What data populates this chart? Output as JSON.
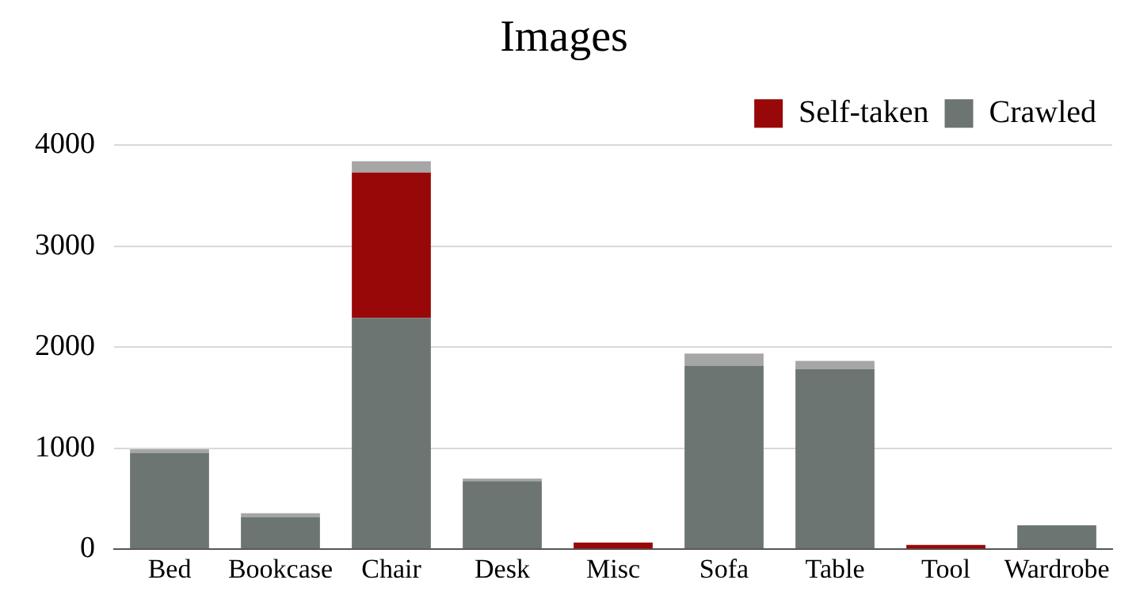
{
  "chart_data": {
    "type": "bar",
    "title": "Images",
    "stacked": true,
    "categories": [
      "Bed",
      "Bookcase",
      "Chair",
      "Desk",
      "Misc",
      "Sofa",
      "Table",
      "Tool",
      "Wardrobe"
    ],
    "series": [
      {
        "name": "Crawled",
        "color": "#6c7571",
        "values": [
          955,
          320,
          2290,
          675,
          0,
          1817,
          1783,
          0,
          236
        ]
      },
      {
        "name": "Self-taken",
        "color": "#990808",
        "values": [
          0,
          0,
          1440,
          0,
          67,
          0,
          0,
          43,
          0
        ]
      },
      {
        "color": "#a6a6a6",
        "values": [
          35,
          37,
          110,
          25,
          0,
          120,
          82,
          0,
          0
        ]
      }
    ],
    "ylim": [
      0,
      4000
    ],
    "yticks": [
      0,
      1000,
      2000,
      3000,
      4000
    ],
    "grid": "y",
    "legend": "top right"
  }
}
